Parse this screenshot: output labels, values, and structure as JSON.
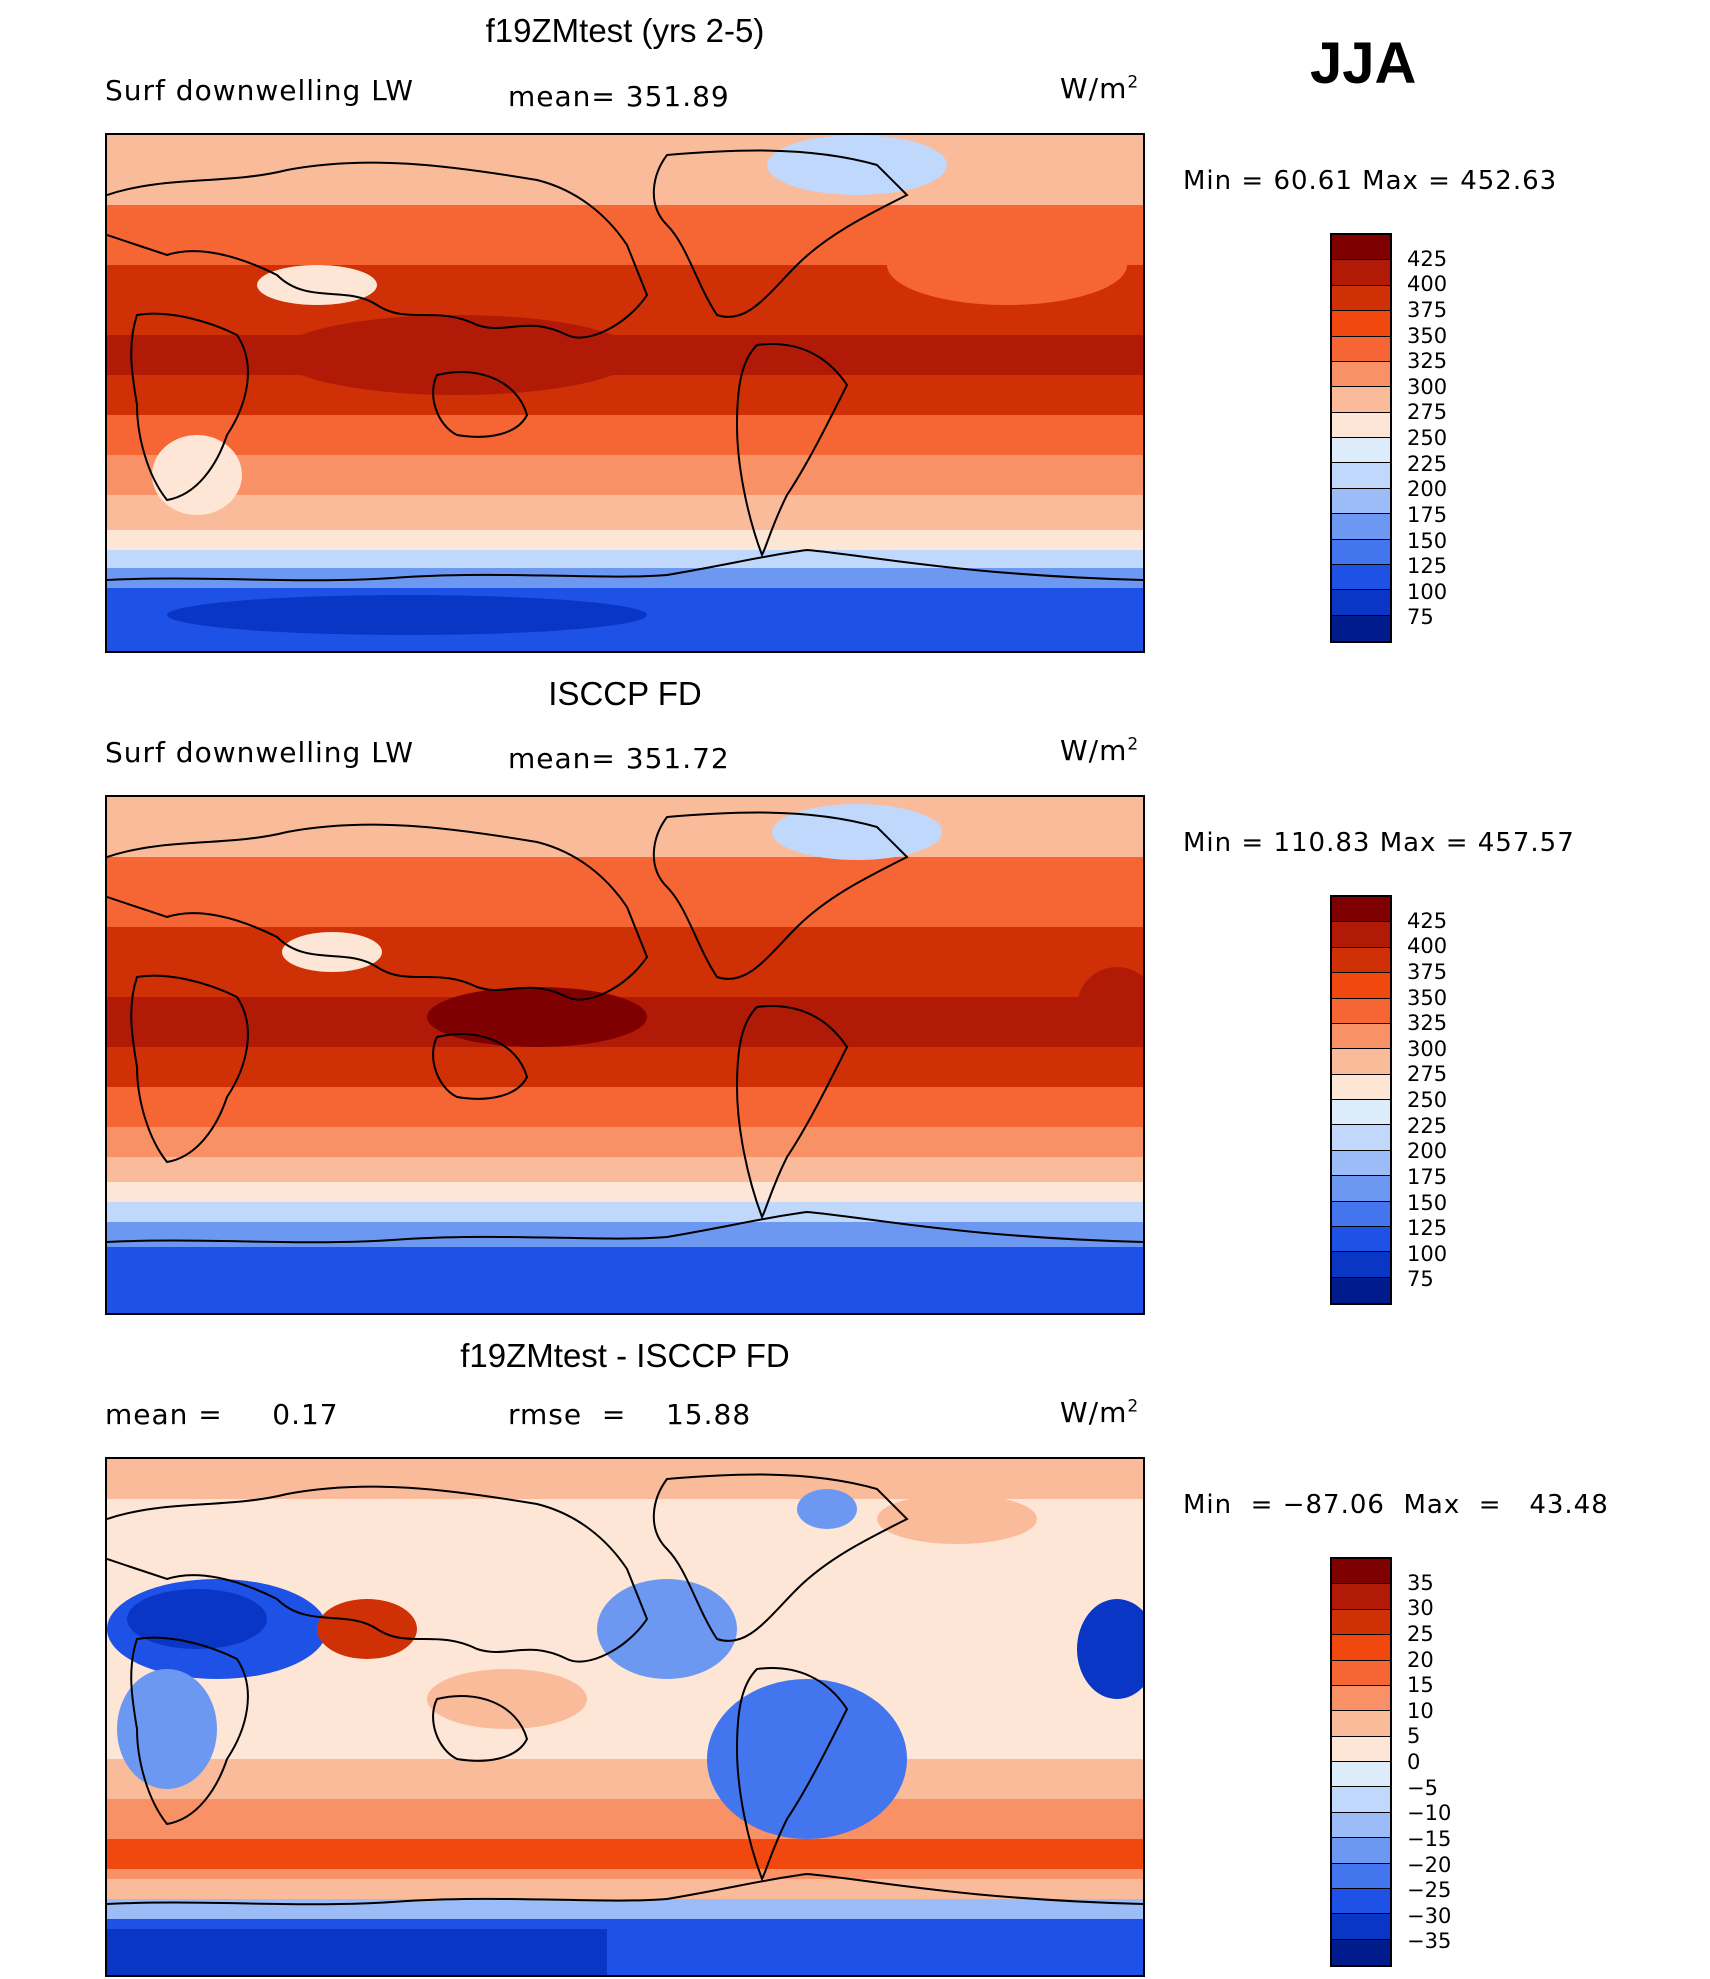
{
  "season": "JJA",
  "panels": [
    {
      "title": "f19ZMtest (yrs 2-5)",
      "left_label": "Surf downwelling LW",
      "center_label": "mean= 351.89",
      "units": "W/m",
      "units_exp": "2",
      "minmax": "Min =   60.61  Max  =  452.63",
      "colorbar": {
        "ticks": [
          "425",
          "400",
          "375",
          "350",
          "325",
          "300",
          "275",
          "250",
          "225",
          "200",
          "175",
          "150",
          "125",
          "100",
          "75"
        ],
        "colors": [
          "#7f0000",
          "#b11a06",
          "#d03005",
          "#f1480f",
          "#f66634",
          "#f89165",
          "#fabb9a",
          "#fde6d6",
          "#dcecfb",
          "#c0d8fb",
          "#9cbcf8",
          "#6d98f2",
          "#4376ee",
          "#1e52e7",
          "#0a36c6",
          "#001c8c"
        ]
      }
    },
    {
      "title": "ISCCP FD",
      "left_label": "Surf downwelling LW",
      "center_label": "mean= 351.72",
      "units": "W/m",
      "units_exp": "2",
      "minmax": "Min  =  110.83  Max  =  457.57",
      "colorbar": {
        "ticks": [
          "425",
          "400",
          "375",
          "350",
          "325",
          "300",
          "275",
          "250",
          "225",
          "200",
          "175",
          "150",
          "125",
          "100",
          "75"
        ],
        "colors": [
          "#7f0000",
          "#b11a06",
          "#d03005",
          "#f1480f",
          "#f66634",
          "#f89165",
          "#fabb9a",
          "#fde6d6",
          "#dcecfb",
          "#c0d8fb",
          "#9cbcf8",
          "#6d98f2",
          "#4376ee",
          "#1e52e7",
          "#0a36c6",
          "#001c8c"
        ]
      }
    },
    {
      "title": "f19ZMtest - ISCCP FD",
      "left_label": "mean =     0.17",
      "center_label": "rmse  =    15.88",
      "units": "W/m",
      "units_exp": "2",
      "minmax": "Min  = −87.06  Max  =   43.48",
      "colorbar": {
        "ticks": [
          "35",
          "30",
          "25",
          "20",
          "15",
          "10",
          "5",
          "0",
          "−5",
          "−10",
          "−15",
          "−20",
          "−25",
          "−30",
          "−35"
        ],
        "colors": [
          "#7f0000",
          "#b11a06",
          "#d03005",
          "#f1480f",
          "#f66634",
          "#f89165",
          "#fabb9a",
          "#fde6d6",
          "#dcecfb",
          "#c0d8fb",
          "#9cbcf8",
          "#6d98f2",
          "#4376ee",
          "#1e52e7",
          "#0a36c6",
          "#001c8c"
        ]
      }
    }
  ]
}
